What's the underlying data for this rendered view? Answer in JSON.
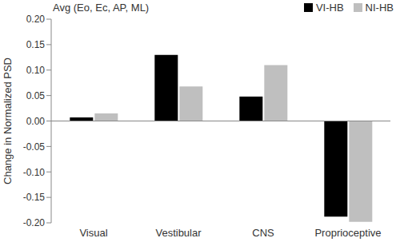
{
  "chart_data": {
    "type": "bar",
    "title": "Avg (Eo, Ec, AP, ML)",
    "y_label": "Change in Normalized PSD",
    "categories": [
      "Visual",
      "Vestibular",
      "CNS",
      "Proprioceptive"
    ],
    "series": [
      {
        "name": "VI-HB",
        "color": "#000000",
        "values": [
          0.007,
          0.13,
          0.048,
          -0.188
        ]
      },
      {
        "name": "NI-HB",
        "color": "#bfbfbf",
        "values": [
          0.015,
          0.068,
          0.11,
          -0.198
        ]
      }
    ],
    "ylim": [
      -0.2,
      0.2
    ],
    "yticks": [
      {
        "value": -0.2,
        "label": "-0.20"
      },
      -0.15,
      {
        "value": -0.1,
        "label": "-0.10"
      },
      -0.05,
      {
        "value": 0,
        "label": "0.00"
      },
      0.05,
      {
        "value": 0.1,
        "label": "0.10"
      },
      0.15,
      {
        "value": 0.2,
        "label": "0.20"
      }
    ],
    "grid": false,
    "legend": "top-right"
  }
}
